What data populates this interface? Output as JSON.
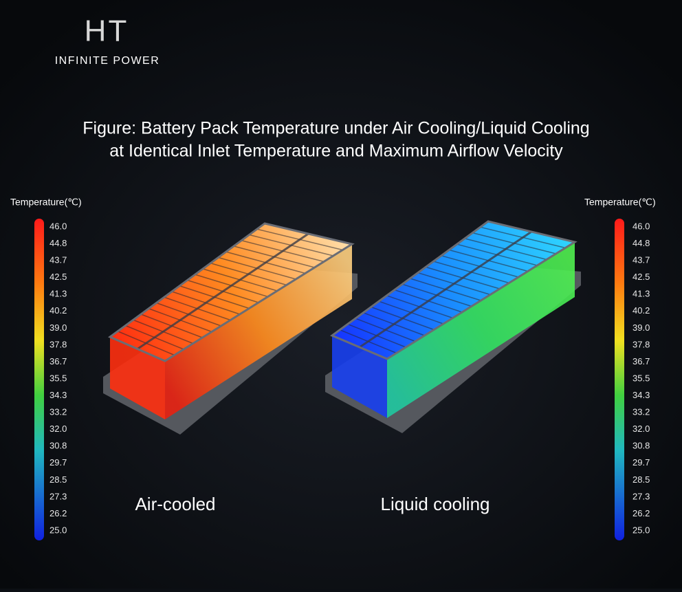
{
  "logo": {
    "mark": "HT",
    "tagline": "INFINITE POWER"
  },
  "title": [
    "Figure: Battery Pack Temperature under Air Cooling/Liquid Cooling",
    "at Identical Inlet Temperature and Maximum Airflow Velocity"
  ],
  "scales": [
    {
      "label": "Temperature(℃)",
      "ticks": [
        "46.0",
        "44.8",
        "43.7",
        "42.5",
        "41.3",
        "40.2",
        "39.0",
        "37.8",
        "36.7",
        "35.5",
        "34.3",
        "33.2",
        "32.0",
        "30.8",
        "29.7",
        "28.5",
        "27.3",
        "26.2",
        "25.0"
      ]
    },
    {
      "label": "Temperature(℃)",
      "ticks": [
        "46.0",
        "44.8",
        "43.7",
        "42.5",
        "41.3",
        "40.2",
        "39.0",
        "37.8",
        "36.7",
        "35.5",
        "34.3",
        "33.2",
        "32.0",
        "30.8",
        "29.7",
        "28.5",
        "27.3",
        "26.2",
        "25.0"
      ]
    }
  ],
  "packs": [
    {
      "label": "Air-cooled"
    },
    {
      "label": "Liquid cooling"
    }
  ]
}
